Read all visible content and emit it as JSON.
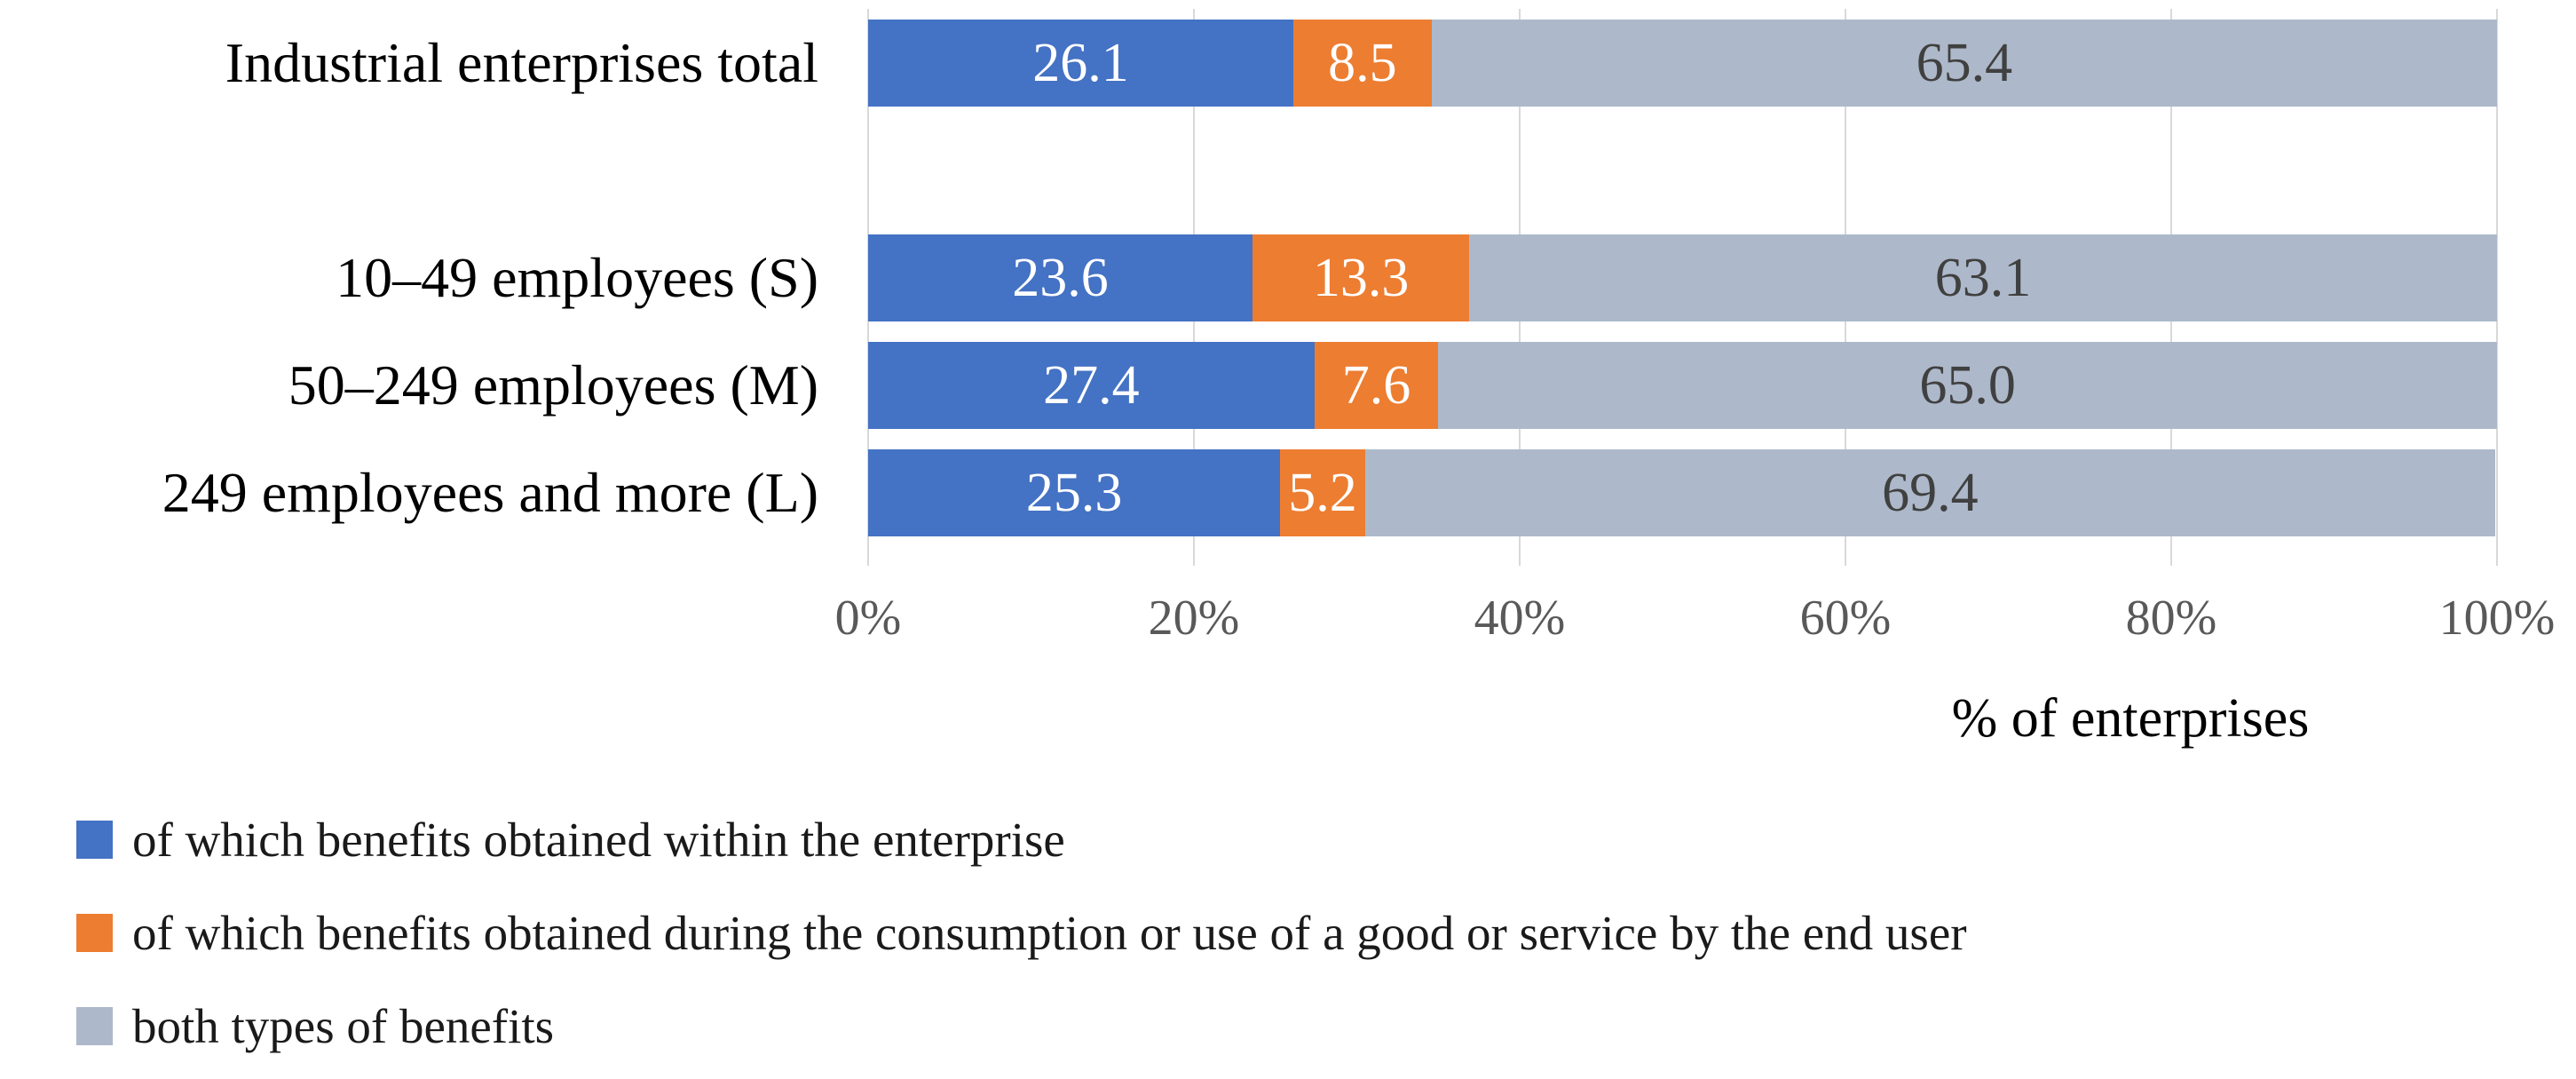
{
  "chart_data": {
    "type": "bar",
    "orientation": "horizontal",
    "stacked": true,
    "title": "",
    "xlabel": "% of enterprises",
    "ylabel": "",
    "xlim": [
      0,
      100
    ],
    "x_tick_values": [
      0,
      20,
      40,
      60,
      80,
      100
    ],
    "x_tick_labels": [
      "0%",
      "20%",
      "40%",
      "60%",
      "80%",
      "100%"
    ],
    "grid": true,
    "legend_position": "bottom-left",
    "value_format": "one_decimal",
    "categories": [
      "Industrial enterprises total",
      "",
      "10–49 employees (S)",
      "50–249 employees (M)",
      "249 employees and more (L)"
    ],
    "series": [
      {
        "name": "of which benefits obtained within the enterprise",
        "color": "#4472C4",
        "label_color": "#FFFFFF",
        "values": [
          26.1,
          null,
          23.6,
          27.4,
          25.3
        ]
      },
      {
        "name": "of which benefits obtained during the consumption or use of a good or service by the end user",
        "color": "#ED7D31",
        "label_color": "#FFFFFF",
        "values": [
          8.5,
          null,
          13.3,
          7.6,
          5.2
        ]
      },
      {
        "name": "both types of benefits",
        "color": "#ADB9CA",
        "label_color": "#404040",
        "values": [
          65.4,
          null,
          63.1,
          65.0,
          69.4
        ]
      }
    ]
  },
  "colors": {
    "grid_line": "#D9D9D9",
    "tick_label": "#595959",
    "category_label": "#000000",
    "axis_title": "#000000",
    "legend_text": "#1A1A1A",
    "background": "#FFFFFF"
  }
}
